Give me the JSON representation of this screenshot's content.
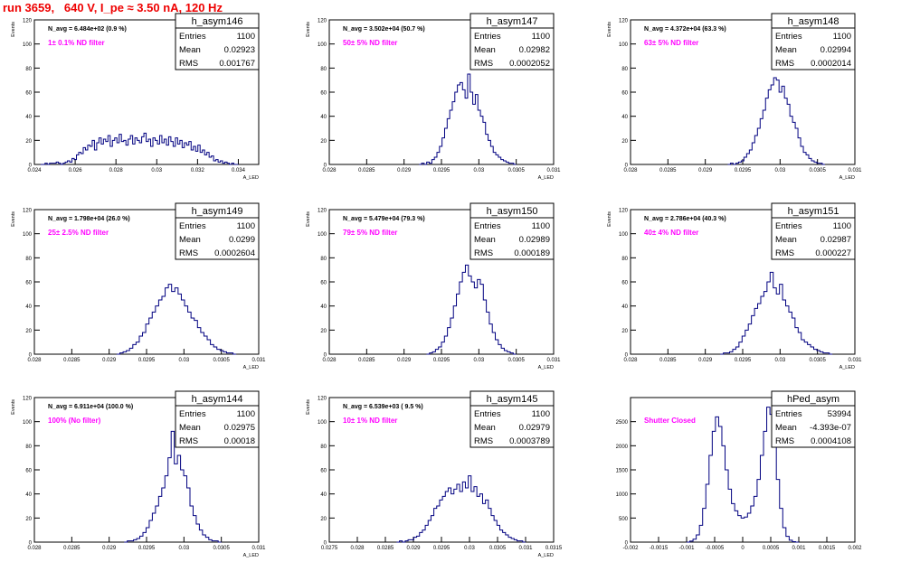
{
  "canvas_title": "run 3659,   640 V, I_pe ≈ 3.50 nA, 120 Hz",
  "colors": {
    "histogram": "#000080",
    "filter_label": "#ff00ff",
    "title": "#ee0000",
    "axis": "#000000"
  },
  "chart_data": [
    {
      "type": "histogram",
      "name": "h_asym146",
      "stats": {
        "entries_label": "Entries",
        "entries": "1100",
        "mean_label": "Mean",
        "mean": "0.02923",
        "rms_label": "RMS",
        "rms": "0.001767"
      },
      "navg": "N_avg = 6.484e+02 (0.9 %)",
      "filter": "1± 0.1% ND filter",
      "ylabel": "Events",
      "xlabel": "A_LED",
      "xlim": [
        0.024,
        0.035
      ],
      "ylim": [
        0,
        120
      ],
      "xticks": [
        "0.024",
        "0.026",
        "0.028",
        "0.03",
        "0.032",
        "0.034"
      ],
      "xtick_values": [
        0.024,
        0.026,
        0.028,
        0.03,
        0.032,
        0.034
      ],
      "yticks": [
        "0",
        "20",
        "40",
        "60",
        "80",
        "100",
        "120"
      ],
      "bins": {
        "min": 0.0243,
        "max": 0.034,
        "values": [
          0,
          0,
          1,
          0,
          1,
          1,
          1,
          2,
          1,
          0,
          1,
          2,
          3,
          2,
          5,
          4,
          8,
          10,
          9,
          14,
          12,
          16,
          15,
          20,
          12,
          18,
          22,
          17,
          21,
          19,
          24,
          15,
          20,
          22,
          18,
          25,
          19,
          20,
          16,
          21,
          24,
          17,
          22,
          20,
          18,
          23,
          26,
          19,
          21,
          15,
          22,
          20,
          17,
          24,
          18,
          21,
          16,
          23,
          19,
          15,
          22,
          17,
          20,
          14,
          18,
          16,
          19,
          12,
          15,
          11,
          16,
          10,
          12,
          8,
          10,
          6,
          7,
          3,
          4,
          2,
          3,
          1,
          2,
          1,
          0,
          1,
          0,
          0
        ]
      }
    },
    {
      "type": "histogram",
      "name": "h_asym147",
      "stats": {
        "entries_label": "Entries",
        "entries": "1100",
        "mean_label": "Mean",
        "mean": "0.02982",
        "rms_label": "RMS",
        "rms": "0.0002052"
      },
      "navg": "N_avg = 3.502e+04 (50.7 %)",
      "filter": "50± 5% ND filter",
      "ylabel": "Events",
      "xlabel": "A_LED",
      "xlim": [
        0.028,
        0.031
      ],
      "ylim": [
        0,
        120
      ],
      "xticks": [
        "0.028",
        "0.0285",
        "0.029",
        "0.0295",
        "0.03",
        "0.0305",
        "0.031"
      ],
      "xtick_values": [
        0.028,
        0.0285,
        0.029,
        0.0295,
        0.03,
        0.0305,
        0.031
      ],
      "yticks": [
        "0",
        "20",
        "40",
        "60",
        "80",
        "100",
        "120"
      ],
      "bins": {
        "min": 0.0292,
        "max": 0.0305,
        "values": [
          0,
          1,
          0,
          2,
          1,
          4,
          6,
          10,
          15,
          22,
          30,
          38,
          45,
          52,
          60,
          66,
          68,
          62,
          55,
          75,
          60,
          50,
          58,
          45,
          40,
          35,
          25,
          20,
          15,
          10,
          8,
          6,
          4,
          3,
          2,
          1,
          1,
          0
        ]
      }
    },
    {
      "type": "histogram",
      "name": "h_asym148",
      "stats": {
        "entries_label": "Entries",
        "entries": "1100",
        "mean_label": "Mean",
        "mean": "0.02994",
        "rms_label": "RMS",
        "rms": "0.0002014"
      },
      "navg": "N_avg = 4.372e+04 (63.3 %)",
      "filter": "63± 5% ND filter",
      "ylabel": "Events",
      "xlabel": "A_LED",
      "xlim": [
        0.028,
        0.031
      ],
      "ylim": [
        0,
        120
      ],
      "xticks": [
        "0.028",
        "0.0285",
        "0.029",
        "0.0295",
        "0.03",
        "0.0305",
        "0.031"
      ],
      "xtick_values": [
        0.028,
        0.0285,
        0.029,
        0.0295,
        0.03,
        0.0305,
        0.031
      ],
      "yticks": [
        "0",
        "20",
        "40",
        "60",
        "80",
        "100",
        "120"
      ],
      "bins": {
        "min": 0.0293,
        "max": 0.0306,
        "values": [
          0,
          1,
          0,
          1,
          2,
          3,
          6,
          9,
          12,
          18,
          24,
          30,
          38,
          45,
          55,
          62,
          66,
          72,
          70,
          60,
          65,
          55,
          50,
          40,
          35,
          30,
          22,
          15,
          10,
          8,
          5,
          3,
          2,
          1,
          1,
          0
        ]
      }
    },
    {
      "type": "histogram",
      "name": "h_asym149",
      "stats": {
        "entries_label": "Entries",
        "entries": "1100",
        "mean_label": "Mean",
        "mean": "0.0299",
        "rms_label": "RMS",
        "rms": "0.0002604"
      },
      "navg": "N_avg = 1.798e+04 (26.0 %)",
      "filter": "25± 2.5% ND filter",
      "ylabel": "Events",
      "xlabel": "A_LED",
      "xlim": [
        0.028,
        0.031
      ],
      "ylim": [
        0,
        120
      ],
      "xticks": [
        "0.028",
        "0.0285",
        "0.029",
        "0.0295",
        "0.03",
        "0.0305",
        "0.031"
      ],
      "xtick_values": [
        0.028,
        0.0285,
        0.029,
        0.0295,
        0.03,
        0.0305,
        0.031
      ],
      "yticks": [
        "0",
        "20",
        "40",
        "60",
        "80",
        "100",
        "120"
      ],
      "bins": {
        "min": 0.0291,
        "max": 0.0307,
        "values": [
          0,
          1,
          2,
          3,
          5,
          8,
          10,
          15,
          18,
          25,
          30,
          35,
          40,
          45,
          48,
          55,
          58,
          52,
          55,
          50,
          45,
          40,
          35,
          30,
          28,
          22,
          18,
          15,
          12,
          8,
          6,
          4,
          3,
          2,
          1,
          1,
          0
        ]
      }
    },
    {
      "type": "histogram",
      "name": "h_asym150",
      "stats": {
        "entries_label": "Entries",
        "entries": "1100",
        "mean_label": "Mean",
        "mean": "0.02989",
        "rms_label": "RMS",
        "rms": "0.000189"
      },
      "navg": "N_avg = 5.479e+04 (79.3 %)",
      "filter": "79± 5% ND filter",
      "ylabel": "Events",
      "xlabel": "A_LED",
      "xlim": [
        0.028,
        0.031
      ],
      "ylim": [
        0,
        120
      ],
      "xticks": [
        "0.028",
        "0.0285",
        "0.029",
        "0.0295",
        "0.03",
        "0.0305",
        "0.031"
      ],
      "xtick_values": [
        0.028,
        0.0285,
        0.029,
        0.0295,
        0.03,
        0.0305,
        0.031
      ],
      "yticks": [
        "0",
        "20",
        "40",
        "60",
        "80",
        "100",
        "120"
      ],
      "bins": {
        "min": 0.0293,
        "max": 0.0305,
        "values": [
          0,
          1,
          2,
          4,
          6,
          10,
          15,
          22,
          30,
          40,
          50,
          60,
          68,
          74,
          65,
          60,
          55,
          62,
          58,
          45,
          35,
          25,
          18,
          12,
          8,
          5,
          3,
          2,
          1,
          0
        ]
      }
    },
    {
      "type": "histogram",
      "name": "h_asym151",
      "stats": {
        "entries_label": "Entries",
        "entries": "1100",
        "mean_label": "Mean",
        "mean": "0.02987",
        "rms_label": "RMS",
        "rms": "0.000227"
      },
      "navg": "N_avg = 2.786e+04 (40.3 %)",
      "filter": "40± 4% ND filter",
      "ylabel": "Events",
      "xlabel": "A_LED",
      "xlim": [
        0.028,
        0.031
      ],
      "ylim": [
        0,
        120
      ],
      "xticks": [
        "0.028",
        "0.0285",
        "0.029",
        "0.0295",
        "0.03",
        "0.0305",
        "0.031"
      ],
      "xtick_values": [
        0.028,
        0.0285,
        0.029,
        0.0295,
        0.03,
        0.0305,
        0.031
      ],
      "yticks": [
        "0",
        "20",
        "40",
        "60",
        "80",
        "100",
        "120"
      ],
      "bins": {
        "min": 0.0292,
        "max": 0.0307,
        "values": [
          0,
          1,
          1,
          2,
          4,
          6,
          10,
          15,
          20,
          25,
          32,
          38,
          42,
          48,
          52,
          60,
          68,
          55,
          50,
          58,
          45,
          40,
          35,
          30,
          22,
          18,
          12,
          10,
          8,
          6,
          4,
          3,
          2,
          1,
          1,
          0
        ]
      }
    },
    {
      "type": "histogram",
      "name": "h_asym144",
      "stats": {
        "entries_label": "Entries",
        "entries": "1100",
        "mean_label": "Mean",
        "mean": "0.02975",
        "rms_label": "RMS",
        "rms": "0.00018"
      },
      "navg": "N_avg = 6.911e+04 (100.0 %)",
      "filter": "100% (No filter)",
      "ylabel": "Events",
      "xlabel": "A_LED",
      "xlim": [
        0.028,
        0.031
      ],
      "ylim": [
        0,
        120
      ],
      "xticks": [
        "0.028",
        "0.0285",
        "0.029",
        "0.0295",
        "0.03",
        "0.0305",
        "0.031"
      ],
      "xtick_values": [
        0.028,
        0.0285,
        0.029,
        0.0295,
        0.03,
        0.0305,
        0.031
      ],
      "yticks": [
        "0",
        "20",
        "40",
        "60",
        "80",
        "100",
        "120"
      ],
      "bins": {
        "min": 0.0292,
        "max": 0.0305,
        "values": [
          0,
          1,
          1,
          2,
          3,
          5,
          8,
          12,
          18,
          24,
          30,
          38,
          45,
          55,
          70,
          92,
          65,
          72,
          60,
          55,
          45,
          30,
          22,
          15,
          10,
          6,
          4,
          2,
          1,
          1,
          0
        ]
      }
    },
    {
      "type": "histogram",
      "name": "h_asym145",
      "stats": {
        "entries_label": "Entries",
        "entries": "1100",
        "mean_label": "Mean",
        "mean": "0.02979",
        "rms_label": "RMS",
        "rms": "0.0003789"
      },
      "navg": "N_avg = 6.539e+03 ( 9.5 %)",
      "filter": "10± 1% ND filter",
      "ylabel": "Events",
      "xlabel": "A_LED",
      "xlim": [
        0.0275,
        0.0315
      ],
      "ylim": [
        0,
        120
      ],
      "xticks": [
        "0.0275",
        "0.028",
        "0.0285",
        "0.029",
        "0.0295",
        "0.03",
        "0.0305",
        "0.031",
        "0.0315"
      ],
      "xtick_values": [
        0.0275,
        0.028,
        0.0285,
        0.029,
        0.0295,
        0.03,
        0.0305,
        0.031,
        0.0315
      ],
      "yticks": [
        "0",
        "20",
        "40",
        "60",
        "80",
        "100",
        "120"
      ],
      "bins": {
        "min": 0.0287,
        "max": 0.031,
        "values": [
          0,
          1,
          0,
          1,
          2,
          2,
          4,
          5,
          8,
          10,
          14,
          18,
          22,
          28,
          30,
          35,
          38,
          42,
          45,
          40,
          44,
          48,
          42,
          50,
          45,
          55,
          42,
          46,
          38,
          40,
          32,
          35,
          28,
          22,
          18,
          14,
          10,
          8,
          6,
          4,
          3,
          2,
          1,
          1,
          0
        ]
      }
    },
    {
      "type": "histogram",
      "name": "hPed_asym",
      "stats": {
        "entries_label": "Entries",
        "entries": "53994",
        "mean_label": "Mean",
        "mean": "-4.393e-07",
        "rms_label": "RMS",
        "rms": "0.0004108"
      },
      "navg": "",
      "filter": "Shutter Closed",
      "ylabel": "",
      "xlabel": "",
      "xlim": [
        -0.002,
        0.002
      ],
      "ylim": [
        0,
        3000
      ],
      "xticks": [
        "-0.002",
        "-0.0015",
        "-0.001",
        "-0.0005",
        "0",
        "0.0005",
        "0.001",
        "0.0015",
        "0.002"
      ],
      "xtick_values": [
        -0.002,
        -0.0015,
        -0.001,
        -0.0005,
        0,
        0.0005,
        0.001,
        0.0015,
        0.002
      ],
      "yticks": [
        "0",
        "500",
        "1000",
        "1500",
        "2000",
        "2500"
      ],
      "bins": {
        "min": -0.001,
        "max": 0.001,
        "values": [
          0,
          20,
          60,
          150,
          350,
          700,
          1200,
          1800,
          2300,
          2600,
          2400,
          2000,
          1500,
          1100,
          800,
          650,
          550,
          500,
          520,
          600,
          750,
          950,
          1300,
          1800,
          2300,
          2800,
          2650,
          2000,
          1300,
          700,
          300,
          120,
          40,
          10,
          0
        ]
      }
    }
  ]
}
